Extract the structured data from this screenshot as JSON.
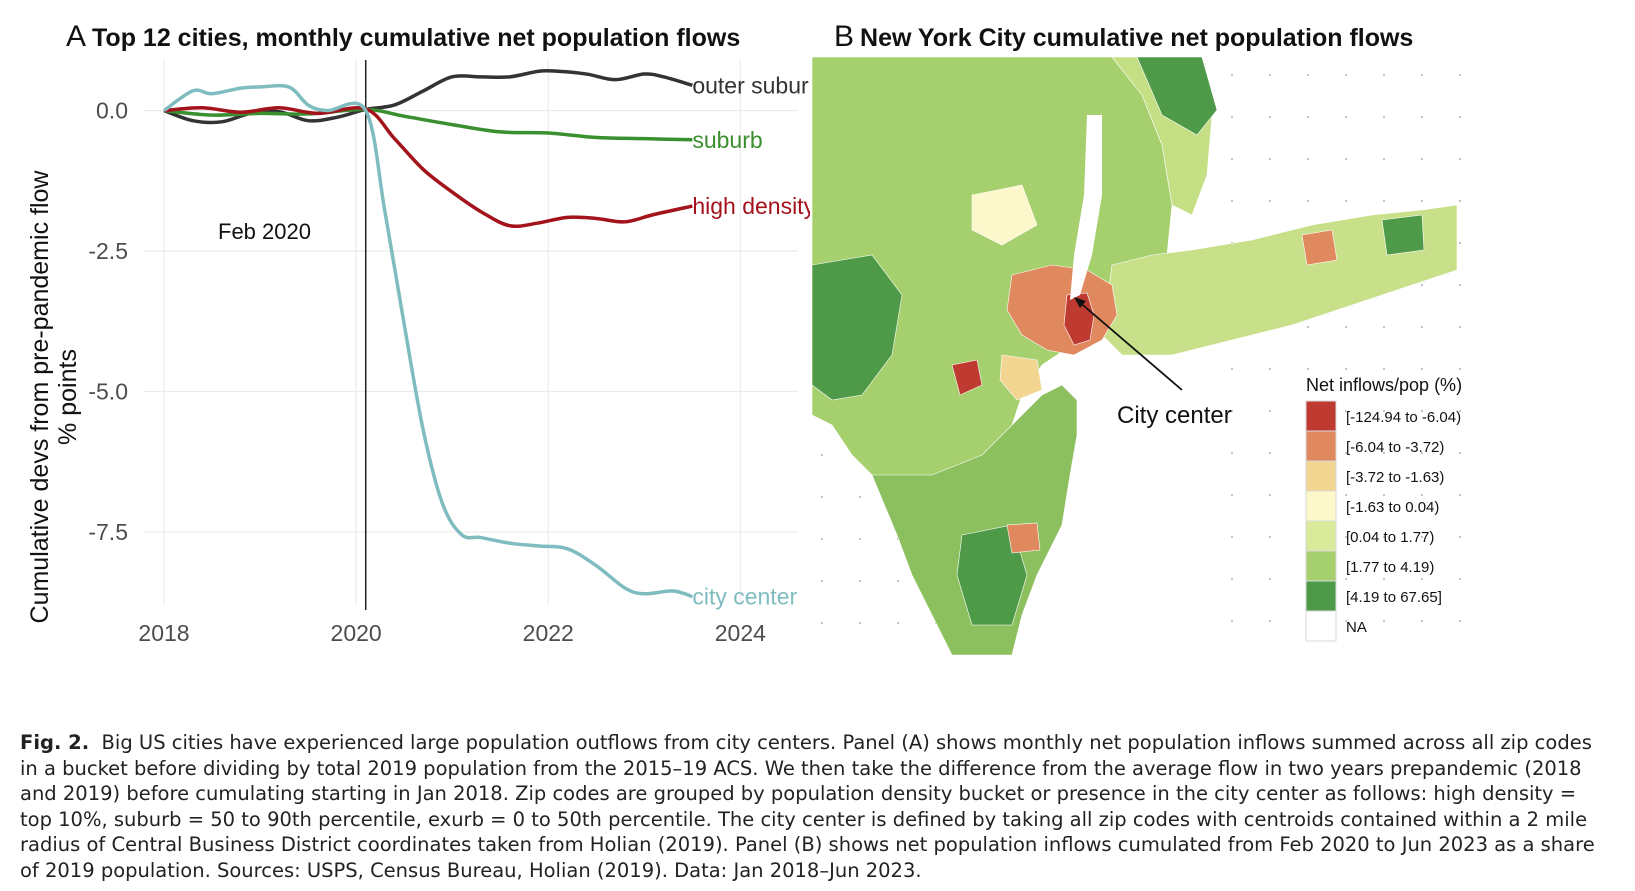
{
  "panel_a": {
    "letter": "A",
    "title": "Top 12 cities, monthly cumulative net population flows",
    "annotation": "Feb 2020"
  },
  "panel_b": {
    "letter": "B",
    "title": "New York City cumulative net population flows",
    "callout": "City center",
    "legend_title": "Net inflows/pop (%)",
    "legend": [
      {
        "label": "[-124.94 to -6.04)",
        "color": "#bf3b32"
      },
      {
        "label": "[-6.04 to -3.72)",
        "color": "#e0895e"
      },
      {
        "label": "[-3.72 to -1.63)",
        "color": "#f2d590"
      },
      {
        "label": "[-1.63 to 0.04)",
        "color": "#fcf8cb"
      },
      {
        "label": "[0.04 to 1.77)",
        "color": "#d9ea9a"
      },
      {
        "label": "[1.77 to 4.19)",
        "color": "#a6cf6d"
      },
      {
        "label": "[4.19 to 67.65]",
        "color": "#4f9a48"
      },
      {
        "label": "NA",
        "color": "#ffffff"
      }
    ]
  },
  "chart_data": {
    "type": "line",
    "title": "Top 12 cities, monthly cumulative net population flows",
    "xlabel": "",
    "ylabel": "Cumulative devs from pre-pandemic flow",
    "ylabel2": "% points",
    "xlim": [
      2018,
      2024.6
    ],
    "ylim": [
      -8.8,
      0.9
    ],
    "x_ticks": [
      2018,
      2020,
      2022,
      2024
    ],
    "y_ticks": [
      0.0,
      -2.5,
      -5.0,
      -7.5
    ],
    "y_tick_labels": [
      "0.0",
      "-2.5",
      "-5.0",
      "-7.5"
    ],
    "vline": 2020.1,
    "grid": true,
    "series": [
      {
        "name": "outer suburb",
        "color": "#333333",
        "x": [
          2018,
          2018.3,
          2018.6,
          2018.9,
          2019.2,
          2019.5,
          2019.8,
          2020.1,
          2020.4,
          2020.7,
          2021.0,
          2021.3,
          2021.6,
          2021.9,
          2022.1,
          2022.4,
          2022.7,
          2023.0,
          2023.2,
          2023.5
        ],
        "y": [
          0.0,
          -0.18,
          -0.2,
          -0.05,
          -0.02,
          -0.18,
          -0.12,
          0.02,
          0.1,
          0.35,
          0.6,
          0.6,
          0.6,
          0.7,
          0.7,
          0.65,
          0.55,
          0.65,
          0.6,
          0.45
        ]
      },
      {
        "name": "suburb",
        "color": "#3a8f2e",
        "x": [
          2018,
          2018.5,
          2019.0,
          2019.5,
          2020.1,
          2020.5,
          2021.0,
          2021.5,
          2022.0,
          2022.5,
          2023.0,
          2023.5
        ],
        "y": [
          0.0,
          -0.08,
          -0.05,
          -0.06,
          0.02,
          -0.1,
          -0.25,
          -0.38,
          -0.4,
          -0.48,
          -0.5,
          -0.52
        ]
      },
      {
        "name": "high density",
        "color": "#a3131b",
        "x": [
          2018,
          2018.4,
          2018.8,
          2019.2,
          2019.6,
          2020.1,
          2020.4,
          2020.7,
          2021.0,
          2021.3,
          2021.6,
          2021.9,
          2022.2,
          2022.5,
          2022.8,
          2023.1,
          2023.5
        ],
        "y": [
          0.0,
          0.05,
          -0.03,
          0.05,
          -0.05,
          0.03,
          -0.5,
          -1.05,
          -1.45,
          -1.8,
          -2.05,
          -2.0,
          -1.9,
          -1.92,
          -1.98,
          -1.85,
          -1.7
        ]
      },
      {
        "name": "city center",
        "color": "#7fbcbf",
        "x": [
          2018,
          2018.3,
          2018.5,
          2018.8,
          2019.0,
          2019.3,
          2019.5,
          2019.7,
          2020.1,
          2020.3,
          2020.5,
          2020.7,
          2020.9,
          2021.1,
          2021.3,
          2021.6,
          2021.9,
          2022.2,
          2022.5,
          2022.8,
          2023.0,
          2023.3,
          2023.5
        ],
        "y": [
          0.0,
          0.35,
          0.3,
          0.4,
          0.42,
          0.42,
          0.1,
          0.0,
          0.0,
          -1.8,
          -3.8,
          -5.7,
          -7.0,
          -7.55,
          -7.6,
          -7.7,
          -7.75,
          -7.8,
          -8.1,
          -8.5,
          -8.6,
          -8.55,
          -8.65
        ]
      }
    ]
  },
  "caption": {
    "label": "Fig. 2.",
    "text": "Big US cities have experienced large population outflows from city centers. Panel (A) shows monthly net population inflows summed across all zip codes in a bucket before dividing by total 2019 population from the 2015–19 ACS. We then take the difference from the average flow in two years prepandemic (2018 and 2019) before cumulating starting in Jan 2018. Zip codes are grouped by population density bucket or presence in the city center as follows: high density = top 10%, suburb = 50 to 90th percentile, exurb = 0 to 50th percentile. The city center is defined by taking all zip codes with centroids contained within a 2 mile radius of Central Business District coordinates taken from Holian (2019). Panel (B) shows net population inflows cumulated from Feb 2020 to Jun 2023 as a share of 2019 population. Sources: USPS, Census Bureau, Holian (2019). Data: Jan 2018–Jun 2023."
  }
}
